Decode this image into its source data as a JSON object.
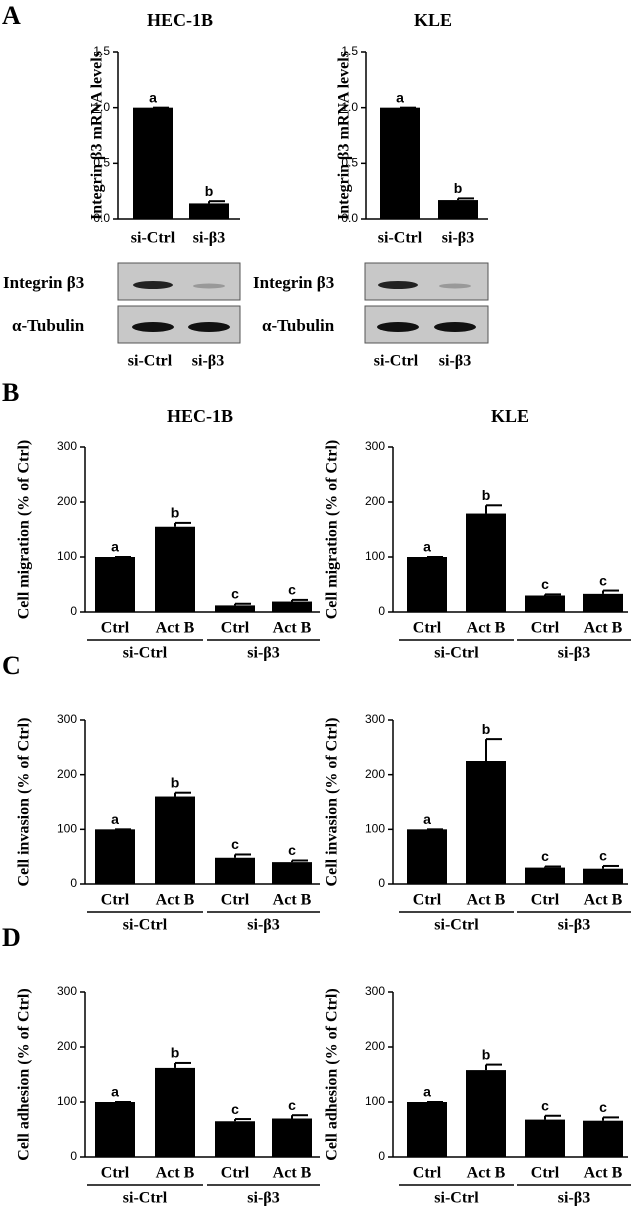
{
  "panel_labels": [
    "A",
    "B",
    "C",
    "D"
  ],
  "blots": [
    {
      "rows": [
        "Integrin β3",
        "α-Tubulin"
      ],
      "lanes": [
        "si-Ctrl",
        "si-β3"
      ]
    },
    {
      "rows": [
        "Integrin β3",
        "α-Tubulin"
      ],
      "lanes": [
        "si-Ctrl",
        "si-β3"
      ]
    }
  ],
  "chart_data": [
    {
      "type": "bar",
      "title": "HEC-1B",
      "ylabel": "Integrin β3 mRNA levels",
      "categories": [
        "si-Ctrl",
        "si-β3"
      ],
      "values": [
        1.0,
        0.14
      ],
      "errors": [
        0,
        0.02
      ],
      "annotations": [
        "a",
        "b"
      ],
      "color": "#000000",
      "ylim": [
        0,
        1.5
      ],
      "yticks": [
        {
          "value": 0,
          "label": "0.0"
        },
        0.5,
        {
          "value": 1,
          "label": "1.0"
        },
        1.5
      ]
    },
    {
      "type": "bar",
      "title": "KLE",
      "ylabel": "Integrin β3 mRNA levels",
      "categories": [
        "si-Ctrl",
        "si-β3"
      ],
      "values": [
        1.0,
        0.17
      ],
      "errors": [
        0,
        0.015
      ],
      "annotations": [
        "a",
        "b"
      ],
      "color": "#000000",
      "ylim": [
        0,
        1.5
      ],
      "yticks": [
        {
          "value": 0,
          "label": "0.0"
        },
        0.5,
        {
          "value": 1,
          "label": "1.0"
        },
        1.5
      ]
    },
    {
      "type": "bar",
      "title": "HEC-1B",
      "ylabel": "Cell migration (% of Ctrl)",
      "categories": [
        "Ctrl",
        "Act B",
        "Ctrl",
        "Act B"
      ],
      "groups": [
        "si-Ctrl",
        "si-β3"
      ],
      "values": [
        100,
        155,
        12,
        19
      ],
      "errors": [
        0,
        7,
        3,
        3
      ],
      "annotations": [
        "a",
        "b",
        "c",
        "c"
      ],
      "color": "#000000",
      "ylim": [
        0,
        300
      ],
      "yticks": [
        0,
        100,
        200,
        300
      ]
    },
    {
      "type": "bar",
      "title": "KLE",
      "ylabel": "Cell migration (% of Ctrl)",
      "categories": [
        "Ctrl",
        "Act B",
        "Ctrl",
        "Act B"
      ],
      "groups": [
        "si-Ctrl",
        "si-β3"
      ],
      "values": [
        100,
        179,
        30,
        33
      ],
      "errors": [
        0,
        15,
        2,
        6
      ],
      "annotations": [
        "a",
        "b",
        "c",
        "c"
      ],
      "color": "#000000",
      "ylim": [
        0,
        300
      ],
      "yticks": [
        0,
        100,
        200,
        300
      ]
    },
    {
      "type": "bar",
      "ylabel": "Cell invasion (% of Ctrl)",
      "categories": [
        "Ctrl",
        "Act B",
        "Ctrl",
        "Act B"
      ],
      "groups": [
        "si-Ctrl",
        "si-β3"
      ],
      "values": [
        100,
        160,
        48,
        40
      ],
      "errors": [
        0,
        7,
        6,
        3
      ],
      "annotations": [
        "a",
        "b",
        "c",
        "c"
      ],
      "color": "#000000",
      "ylim": [
        0,
        300
      ],
      "yticks": [
        0,
        100,
        200,
        300
      ]
    },
    {
      "type": "bar",
      "ylabel": "Cell invasion (% of Ctrl)",
      "categories": [
        "Ctrl",
        "Act B",
        "Ctrl",
        "Act B"
      ],
      "groups": [
        "si-Ctrl",
        "si-β3"
      ],
      "values": [
        100,
        225,
        30,
        28
      ],
      "errors": [
        0,
        40,
        2,
        5
      ],
      "annotations": [
        "a",
        "b",
        "c",
        "c"
      ],
      "color": "#000000",
      "ylim": [
        0,
        300
      ],
      "yticks": [
        0,
        100,
        200,
        300
      ]
    },
    {
      "type": "bar",
      "ylabel": "Cell adhesion (% of Ctrl)",
      "categories": [
        "Ctrl",
        "Act B",
        "Ctrl",
        "Act B"
      ],
      "groups": [
        "si-Ctrl",
        "si-β3"
      ],
      "values": [
        100,
        162,
        65,
        70
      ],
      "errors": [
        0,
        9,
        4,
        6
      ],
      "annotations": [
        "a",
        "b",
        "c",
        "c"
      ],
      "color": "#000000",
      "ylim": [
        0,
        300
      ],
      "yticks": [
        0,
        100,
        200,
        300
      ]
    },
    {
      "type": "bar",
      "ylabel": "Cell adhesion (% of Ctrl)",
      "categories": [
        "Ctrl",
        "Act B",
        "Ctrl",
        "Act B"
      ],
      "groups": [
        "si-Ctrl",
        "si-β3"
      ],
      "values": [
        100,
        158,
        68,
        66
      ],
      "errors": [
        0,
        10,
        7,
        6
      ],
      "annotations": [
        "a",
        "b",
        "c",
        "c"
      ],
      "color": "#000000",
      "ylim": [
        0,
        300
      ],
      "yticks": [
        0,
        100,
        200,
        300
      ]
    }
  ]
}
